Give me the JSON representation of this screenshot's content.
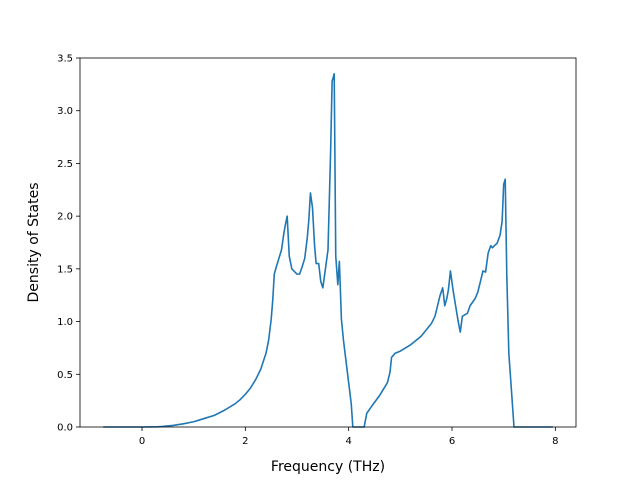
{
  "chart_data": {
    "type": "line",
    "title": "",
    "xlabel": "Frequency (THz)",
    "ylabel": "Density of States",
    "xlim": [
      -1.2,
      8.4
    ],
    "ylim": [
      0,
      3.5
    ],
    "xticks": [
      0,
      2,
      4,
      6,
      8
    ],
    "yticks": [
      0.0,
      0.5,
      1.0,
      1.5,
      2.0,
      2.5,
      3.0,
      3.5
    ],
    "grid": false,
    "legend": "none",
    "line_color": "#1f77b4",
    "series": [
      {
        "x": [
          -0.75,
          -0.5,
          0.0,
          0.3,
          0.4,
          0.6,
          0.8,
          1.0,
          1.2,
          1.4,
          1.6,
          1.8,
          1.9,
          2.0,
          2.1,
          2.2,
          2.3,
          2.4,
          2.45,
          2.5,
          2.53,
          2.56,
          2.6,
          2.65,
          2.7,
          2.75,
          2.78,
          2.81,
          2.85,
          2.9,
          3.0,
          3.05,
          3.1,
          3.15,
          3.2,
          3.23,
          3.26,
          3.3,
          3.34,
          3.37,
          3.42,
          3.46,
          3.5,
          3.55,
          3.6,
          3.65,
          3.68,
          3.72,
          3.75,
          3.79,
          3.82,
          3.86,
          3.9,
          3.95,
          4.0,
          4.05,
          4.08,
          4.1,
          4.2,
          4.3,
          4.35,
          4.45,
          4.6,
          4.75,
          4.8,
          4.83,
          4.9,
          5.0,
          5.2,
          5.4,
          5.5,
          5.6,
          5.67,
          5.72,
          5.77,
          5.82,
          5.86,
          5.9,
          5.93,
          5.97,
          6.02,
          6.07,
          6.12,
          6.16,
          6.2,
          6.3,
          6.35,
          6.45,
          6.5,
          6.55,
          6.6,
          6.65,
          6.7,
          6.75,
          6.78,
          6.82,
          6.87,
          6.93,
          6.97,
          7.0,
          7.03,
          7.06,
          7.1,
          7.15,
          7.2,
          7.23,
          7.26,
          7.35,
          7.5,
          7.95
        ],
        "y": [
          0.0,
          0.0,
          0.0,
          0.002,
          0.005,
          0.015,
          0.03,
          0.05,
          0.08,
          0.11,
          0.16,
          0.22,
          0.26,
          0.31,
          0.37,
          0.45,
          0.55,
          0.7,
          0.82,
          1.02,
          1.2,
          1.45,
          1.52,
          1.6,
          1.68,
          1.85,
          1.93,
          2.0,
          1.62,
          1.5,
          1.45,
          1.45,
          1.52,
          1.6,
          1.8,
          1.97,
          2.22,
          2.08,
          1.72,
          1.55,
          1.55,
          1.38,
          1.32,
          1.5,
          1.68,
          2.6,
          3.28,
          3.35,
          1.62,
          1.35,
          1.57,
          1.02,
          0.82,
          0.62,
          0.42,
          0.22,
          0.0,
          0.0,
          0.0,
          0.0,
          0.13,
          0.2,
          0.3,
          0.42,
          0.52,
          0.66,
          0.7,
          0.72,
          0.78,
          0.86,
          0.92,
          0.98,
          1.05,
          1.15,
          1.25,
          1.32,
          1.15,
          1.22,
          1.3,
          1.48,
          1.3,
          1.15,
          1.0,
          0.9,
          1.05,
          1.08,
          1.15,
          1.22,
          1.28,
          1.38,
          1.48,
          1.47,
          1.65,
          1.72,
          1.7,
          1.72,
          1.74,
          1.82,
          1.95,
          2.3,
          2.35,
          1.45,
          0.7,
          0.35,
          0.0,
          0.0,
          0.0,
          0.0,
          0.0,
          0.0
        ]
      }
    ]
  }
}
